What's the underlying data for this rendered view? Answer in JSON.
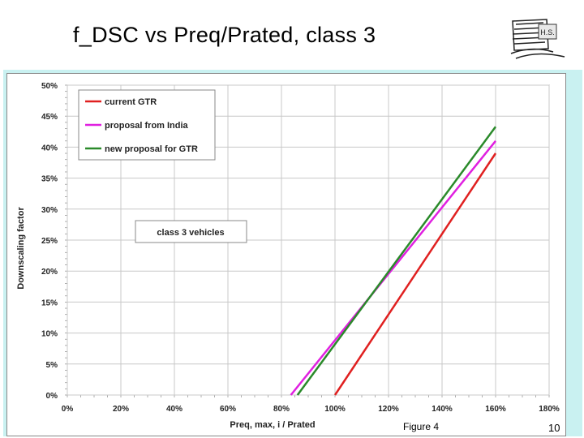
{
  "slide": {
    "title": "f_DSC vs Preq/Prated, class 3",
    "caption": "Figure 4",
    "page_number": "10",
    "logo_text": "H.S."
  },
  "colors": {
    "panel": "#c9f1f1",
    "grid": "#c8c8c8",
    "current_gtr": "#e02020",
    "proposal_india": "#e020e0",
    "new_proposal_gtr": "#2a8a2a"
  },
  "chart_data": {
    "type": "line",
    "title": "",
    "xlabel": "Preq, max, i / Prated",
    "ylabel": "Downscaling factor",
    "xlim": [
      0,
      180
    ],
    "ylim": [
      0,
      50
    ],
    "x_ticks": [
      0,
      20,
      40,
      60,
      80,
      100,
      120,
      140,
      160,
      180
    ],
    "y_ticks": [
      0,
      5,
      10,
      15,
      20,
      25,
      30,
      35,
      40,
      45,
      50
    ],
    "x_tick_labels": [
      "0%",
      "20%",
      "40%",
      "60%",
      "80%",
      "100%",
      "120%",
      "140%",
      "160%",
      "180%"
    ],
    "y_tick_labels": [
      "0%",
      "5%",
      "10%",
      "15%",
      "20%",
      "25%",
      "30%",
      "35%",
      "40%",
      "45%",
      "50%"
    ],
    "grid": true,
    "legend_position": "top-left",
    "annotation": "class 3 vehicles",
    "series": [
      {
        "name": "current GTR",
        "color": "#e02020",
        "points": [
          [
            100,
            0
          ],
          [
            160,
            39
          ]
        ]
      },
      {
        "name": "proposal from India",
        "color": "#e020e0",
        "points": [
          [
            83.5,
            0
          ],
          [
            160,
            41
          ]
        ]
      },
      {
        "name": "new proposal for GTR",
        "color": "#2a8a2a",
        "points": [
          [
            86,
            0
          ],
          [
            160,
            43.3
          ]
        ]
      }
    ]
  }
}
